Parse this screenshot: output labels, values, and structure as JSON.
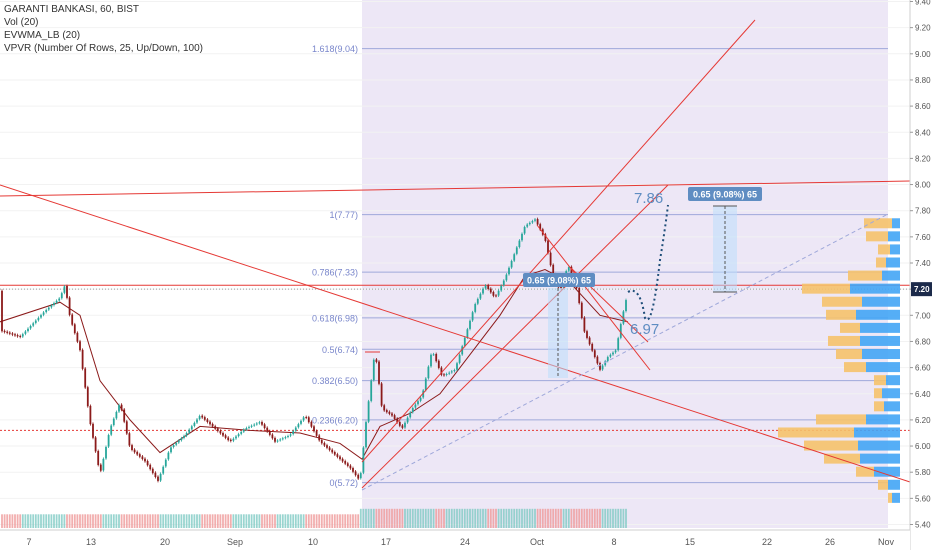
{
  "legend": {
    "symbol_line": "GARANTI BANKASI, 60, BIST",
    "vol_line": "Vol (20)",
    "evwma_line": "EVWMA_LB (20)",
    "vpvr_line": "VPVR (Number Of Rows, 25, Up/Down, 100)"
  },
  "colors": {
    "up": "#26a69a",
    "down": "#8b1a1a",
    "vol_up": "#80cbc4",
    "vol_down": "#ef9a9a",
    "trendline": "#e53935",
    "evwma": "#8b1a1a",
    "fib": "#9fa8da",
    "fib_text": "#7986cb",
    "fib_bg": "#ede7f6",
    "price_tag": "#1c2a4a",
    "measure_label": "#5f8dc2",
    "projection": "#1f4e79",
    "vpvr_up": "#42a5f5",
    "vpvr_down": "#f5c26b"
  },
  "chart_data": {
    "type": "candlestick",
    "symbol": "GARANTI BANKASI",
    "exchange": "BIST",
    "interval": "60",
    "current_price": "7.20",
    "y_axis": {
      "min": 5.4,
      "max": 9.4,
      "ticks": [
        "5.40",
        "5.60",
        "5.80",
        "6.00",
        "6.20",
        "6.40",
        "6.60",
        "6.80",
        "7.00",
        "7.20",
        "7.40",
        "7.60",
        "7.80",
        "8.00",
        "8.20",
        "8.40",
        "8.60",
        "8.80",
        "9.00",
        "9.20",
        "9.40"
      ]
    },
    "x_axis": {
      "labels": [
        "7",
        "13",
        "20",
        "Sep",
        "10",
        "17",
        "24",
        "Oct",
        "8",
        "15",
        "22",
        "26",
        "Nov"
      ]
    },
    "price_path": [
      {
        "t": 0,
        "p": 6.9
      },
      {
        "t": 20,
        "p": 6.85
      },
      {
        "t": 45,
        "p": 7.05
      },
      {
        "t": 60,
        "p": 7.15
      },
      {
        "t": 65,
        "p": 7.25
      },
      {
        "t": 70,
        "p": 7.0
      },
      {
        "t": 80,
        "p": 6.75
      },
      {
        "t": 90,
        "p": 6.2
      },
      {
        "t": 100,
        "p": 5.8
      },
      {
        "t": 110,
        "p": 6.15
      },
      {
        "t": 120,
        "p": 6.35
      },
      {
        "t": 130,
        "p": 6.0
      },
      {
        "t": 145,
        "p": 5.9
      },
      {
        "t": 158,
        "p": 5.75
      },
      {
        "t": 170,
        "p": 6.0
      },
      {
        "t": 185,
        "p": 6.1
      },
      {
        "t": 200,
        "p": 6.25
      },
      {
        "t": 215,
        "p": 6.15
      },
      {
        "t": 230,
        "p": 6.05
      },
      {
        "t": 245,
        "p": 6.15
      },
      {
        "t": 260,
        "p": 6.2
      },
      {
        "t": 275,
        "p": 6.05
      },
      {
        "t": 290,
        "p": 6.1
      },
      {
        "t": 305,
        "p": 6.25
      },
      {
        "t": 320,
        "p": 6.05
      },
      {
        "t": 335,
        "p": 5.95
      },
      {
        "t": 350,
        "p": 5.85
      },
      {
        "t": 360,
        "p": 5.75
      },
      {
        "t": 366,
        "p": 6.2
      },
      {
        "t": 375,
        "p": 6.75
      },
      {
        "t": 382,
        "p": 6.3
      },
      {
        "t": 392,
        "p": 6.25
      },
      {
        "t": 402,
        "p": 6.15
      },
      {
        "t": 412,
        "p": 6.3
      },
      {
        "t": 422,
        "p": 6.4
      },
      {
        "t": 432,
        "p": 6.75
      },
      {
        "t": 442,
        "p": 6.55
      },
      {
        "t": 455,
        "p": 6.6
      },
      {
        "t": 465,
        "p": 6.85
      },
      {
        "t": 475,
        "p": 7.1
      },
      {
        "t": 485,
        "p": 7.25
      },
      {
        "t": 495,
        "p": 7.15
      },
      {
        "t": 505,
        "p": 7.3
      },
      {
        "t": 515,
        "p": 7.5
      },
      {
        "t": 525,
        "p": 7.7
      },
      {
        "t": 535,
        "p": 7.75
      },
      {
        "t": 545,
        "p": 7.6
      },
      {
        "t": 552,
        "p": 7.35
      },
      {
        "t": 560,
        "p": 7.2
      },
      {
        "t": 568,
        "p": 7.4
      },
      {
        "t": 576,
        "p": 7.25
      },
      {
        "t": 584,
        "p": 6.9
      },
      {
        "t": 592,
        "p": 6.75
      },
      {
        "t": 600,
        "p": 6.6
      },
      {
        "t": 608,
        "p": 6.7
      },
      {
        "t": 616,
        "p": 6.75
      },
      {
        "t": 622,
        "p": 7.0
      },
      {
        "t": 628,
        "p": 7.2
      }
    ],
    "evwma": [
      {
        "t": 0,
        "p": 6.95
      },
      {
        "t": 60,
        "p": 7.1
      },
      {
        "t": 80,
        "p": 7.0
      },
      {
        "t": 100,
        "p": 6.5
      },
      {
        "t": 130,
        "p": 6.2
      },
      {
        "t": 160,
        "p": 5.95
      },
      {
        "t": 200,
        "p": 6.15
      },
      {
        "t": 250,
        "p": 6.12
      },
      {
        "t": 300,
        "p": 6.1
      },
      {
        "t": 340,
        "p": 6.02
      },
      {
        "t": 362,
        "p": 5.9
      },
      {
        "t": 380,
        "p": 6.15
      },
      {
        "t": 410,
        "p": 6.25
      },
      {
        "t": 440,
        "p": 6.4
      },
      {
        "t": 470,
        "p": 6.7
      },
      {
        "t": 500,
        "p": 7.0
      },
      {
        "t": 525,
        "p": 7.3
      },
      {
        "t": 545,
        "p": 7.35
      },
      {
        "t": 570,
        "p": 7.25
      },
      {
        "t": 600,
        "p": 7.0
      },
      {
        "t": 628,
        "p": 6.95
      }
    ],
    "fibonacci": [
      {
        "level": "0",
        "price": 5.72,
        "label": "0(5.72)"
      },
      {
        "level": "0.236",
        "price": 6.2,
        "label": "0.236(6.20)"
      },
      {
        "level": "0.382",
        "price": 6.5,
        "label": "0.382(6.50)"
      },
      {
        "level": "0.5",
        "price": 6.74,
        "label": "0.5(6.74)"
      },
      {
        "level": "0.618",
        "price": 6.98,
        "label": "0.618(6.98)"
      },
      {
        "level": "0.786",
        "price": 7.33,
        "label": "0.786(7.33)"
      },
      {
        "level": "1",
        "price": 7.77,
        "label": "1(7.77)"
      },
      {
        "level": "1.618",
        "price": 9.04,
        "label": "1.618(9.04)"
      }
    ],
    "annotations": [
      {
        "text": "7.86",
        "kind": "target"
      },
      {
        "text": "6.97",
        "kind": "target"
      },
      {
        "text": "0.65 (9.08%) 65",
        "kind": "measure"
      },
      {
        "text": "0.65 (9.08%) 65",
        "kind": "measure"
      }
    ],
    "volume_profile": [
      {
        "price": 7.7,
        "up": 8,
        "down": 28
      },
      {
        "price": 7.6,
        "up": 12,
        "down": 22
      },
      {
        "price": 7.5,
        "up": 10,
        "down": 12
      },
      {
        "price": 7.4,
        "up": 14,
        "down": 10
      },
      {
        "price": 7.3,
        "up": 18,
        "down": 34
      },
      {
        "price": 7.2,
        "up": 50,
        "down": 48
      },
      {
        "price": 7.1,
        "up": 38,
        "down": 40
      },
      {
        "price": 7.0,
        "up": 44,
        "down": 30
      },
      {
        "price": 6.9,
        "up": 40,
        "down": 20
      },
      {
        "price": 6.8,
        "up": 40,
        "down": 32
      },
      {
        "price": 6.7,
        "up": 38,
        "down": 26
      },
      {
        "price": 6.6,
        "up": 34,
        "down": 22
      },
      {
        "price": 6.5,
        "up": 14,
        "down": 12
      },
      {
        "price": 6.4,
        "up": 18,
        "down": 8
      },
      {
        "price": 6.3,
        "up": 16,
        "down": 10
      },
      {
        "price": 6.2,
        "up": 34,
        "down": 50
      },
      {
        "price": 6.1,
        "up": 46,
        "down": 76
      },
      {
        "price": 6.0,
        "up": 42,
        "down": 54
      },
      {
        "price": 5.9,
        "up": 40,
        "down": 36
      },
      {
        "price": 5.8,
        "up": 26,
        "down": 18
      },
      {
        "price": 5.7,
        "up": 12,
        "down": 10
      },
      {
        "price": 5.6,
        "up": 8,
        "down": 4
      }
    ],
    "volume_seed": 0.7
  }
}
